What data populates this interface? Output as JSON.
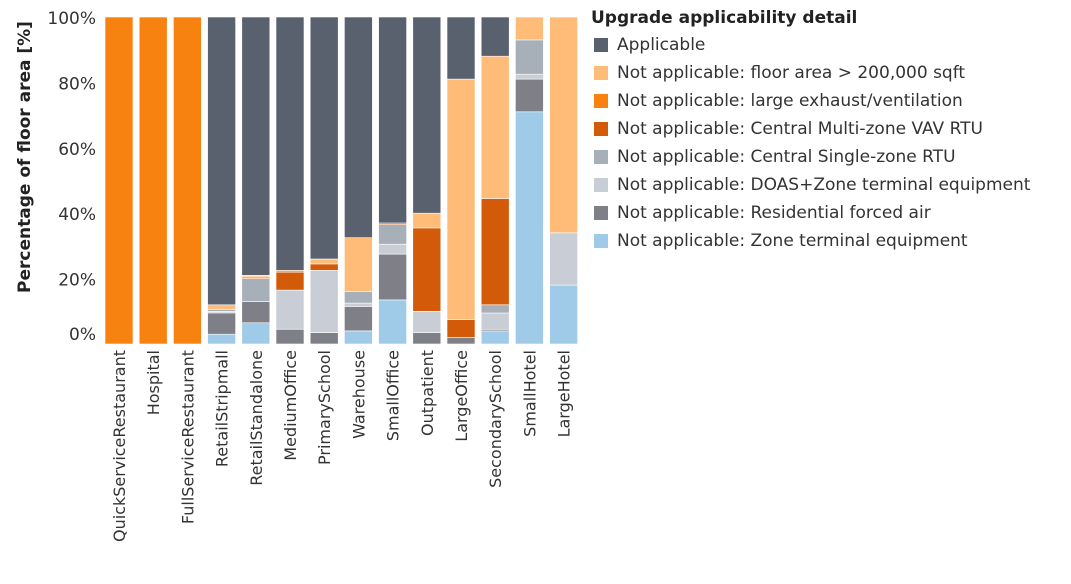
{
  "chart_data": {
    "type": "bar",
    "stacked": true,
    "ylabel": "Percentage of floor area [%]",
    "ylim": [
      0,
      100
    ],
    "yticks": [
      "0%",
      "20%",
      "40%",
      "60%",
      "80%",
      "100%"
    ],
    "grid": false,
    "legend_placement": "right",
    "legend_title": "Upgrade applicability detail",
    "categories": [
      "QuickServiceRestaurant",
      "Hospital",
      "FullServiceRestaurant",
      "RetailStripmall",
      "RetailStandalone",
      "MediumOffice",
      "PrimarySchool",
      "Warehouse",
      "SmallOffice",
      "Outpatient",
      "LargeOffice",
      "SecondarySchool",
      "SmallHotel",
      "LargeHotel"
    ],
    "series": [
      {
        "name": "Zone terminal equipment",
        "legend": "Not applicable: Zone terminal equipment",
        "color": "#a0cbe8",
        "values": [
          0,
          0,
          0,
          3,
          6.5,
          0,
          0,
          4,
          13.5,
          0,
          0,
          4,
          71,
          18
        ]
      },
      {
        "name": "Residential forced air",
        "legend": "Not applicable: Residential forced air",
        "color": "#7f7f87",
        "values": [
          0,
          0,
          0,
          6.5,
          6.5,
          4.5,
          3.5,
          7.5,
          14,
          3.5,
          2,
          0.5,
          10,
          0
        ]
      },
      {
        "name": "DOAS+Zone terminal equipment",
        "legend": "Not applicable: DOAS+Zone terminal equipment",
        "color": "#c9ced6",
        "values": [
          0,
          0,
          0,
          0.5,
          0,
          12,
          19,
          1,
          3,
          6.5,
          0,
          5,
          1.5,
          16
        ]
      },
      {
        "name": "Central Single-zone RTU",
        "legend": "Not applicable: Central Single-zone RTU",
        "color": "#a7afb8",
        "values": [
          0,
          0,
          0,
          0.5,
          7,
          0,
          0,
          3.5,
          6,
          0,
          0,
          2.5,
          10.5,
          0
        ]
      },
      {
        "name": "Central Multi-zone VAV RTU",
        "legend": "Not applicable: Central Multi-zone VAV RTU",
        "color": "#d25a08",
        "values": [
          0,
          0,
          0,
          0,
          0,
          5.5,
          2,
          0,
          0.5,
          25.5,
          5.5,
          32.5,
          0,
          0
        ]
      },
      {
        "name": "large exhaust/ventilation",
        "legend": "Not applicable: large exhaust/ventilation",
        "color": "#f8820f",
        "values": [
          100,
          100,
          100,
          0,
          0.5,
          0.5,
          0,
          0,
          0,
          0,
          0,
          0,
          0,
          0
        ]
      },
      {
        "name": "floor area > 200,000 sqft",
        "legend": "Not applicable: floor area > 200,000 sqft",
        "color": "#ffbb78",
        "values": [
          0,
          0,
          0,
          1.5,
          0.5,
          0,
          1.5,
          16.5,
          0,
          4.5,
          73.5,
          43.5,
          7,
          66
        ]
      },
      {
        "name": "Applicable",
        "legend": "Applicable",
        "color": "#59606e",
        "values": [
          0,
          0,
          0,
          88,
          79,
          77.5,
          74,
          67.5,
          63,
          60,
          19,
          12,
          0,
          0
        ]
      }
    ]
  }
}
